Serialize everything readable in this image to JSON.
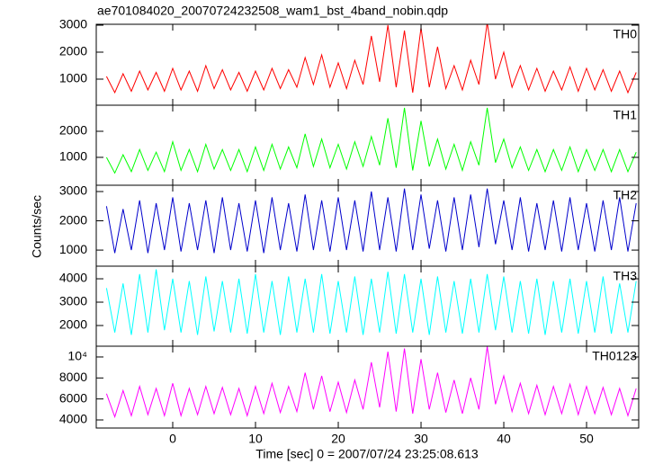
{
  "chart_data": {
    "type": "line",
    "title": "ae701084020_20070724232508_wam1_bst_4band_nobin.qdp",
    "xlabel": "Time [sec] 0 = 2007/07/24 23:25:08.613",
    "ylabel": "Counts/sec",
    "xlim": [
      -9.24,
      56.3
    ],
    "xticks": [
      0,
      10,
      20,
      30,
      40,
      50
    ],
    "x": [
      -8,
      -7,
      -6,
      -5,
      -4,
      -3,
      -2,
      -1,
      0,
      1,
      2,
      3,
      4,
      5,
      6,
      7,
      8,
      9,
      10,
      11,
      12,
      13,
      14,
      15,
      16,
      17,
      18,
      19,
      20,
      21,
      22,
      23,
      24,
      25,
      26,
      27,
      28,
      29,
      30,
      31,
      32,
      33,
      34,
      35,
      36,
      37,
      38,
      39,
      40,
      41,
      42,
      43,
      44,
      45,
      46,
      47,
      48,
      49,
      50,
      51,
      52,
      53,
      54,
      55,
      56
    ],
    "panels": [
      {
        "name": "TH0",
        "color": "#ff0000",
        "ylim": [
          33,
          3033
        ],
        "yticks": [
          1000,
          2000,
          3000
        ],
        "values": [
          1100,
          500,
          1200,
          550,
          1300,
          600,
          1250,
          550,
          1400,
          600,
          1300,
          550,
          1500,
          650,
          1350,
          600,
          1250,
          550,
          1300,
          600,
          1400,
          650,
          1350,
          700,
          1800,
          800,
          1900,
          700,
          1600,
          650,
          1700,
          800,
          2600,
          900,
          3000,
          700,
          2800,
          500,
          2900,
          700,
          2200,
          650,
          1500,
          600,
          1700,
          800,
          3100,
          1000,
          2000,
          700,
          1500,
          600,
          1400,
          550,
          1300,
          600,
          1450,
          550,
          1400,
          600,
          1350,
          550,
          1300,
          500,
          1250
        ]
      },
      {
        "name": "TH1",
        "color": "#00ff00",
        "ylim": [
          -70,
          3000
        ],
        "yticks": [
          1000,
          2000
        ],
        "values": [
          1000,
          400,
          1100,
          450,
          1300,
          500,
          1200,
          450,
          1600,
          500,
          1300,
          450,
          1500,
          550,
          1300,
          500,
          1300,
          450,
          1400,
          500,
          1500,
          550,
          1400,
          600,
          1900,
          650,
          1700,
          600,
          1500,
          550,
          1600,
          650,
          1800,
          700,
          2500,
          600,
          2900,
          500,
          2400,
          650,
          1700,
          550,
          1500,
          500,
          1600,
          700,
          2900,
          800,
          1700,
          600,
          1400,
          500,
          1300,
          450,
          1300,
          500,
          1400,
          450,
          1300,
          500,
          1300,
          450,
          1300,
          450,
          1200
        ]
      },
      {
        "name": "TH2",
        "color": "#0000cc",
        "ylim": [
          450,
          3215
        ],
        "yticks": [
          1000,
          2000,
          3000
        ],
        "values": [
          2500,
          900,
          2400,
          1000,
          2700,
          900,
          2600,
          1000,
          2800,
          950,
          2600,
          1000,
          2700,
          900,
          2800,
          1000,
          2600,
          950,
          2700,
          900,
          2800,
          1000,
          2600,
          950,
          2900,
          1000,
          2700,
          950,
          2800,
          1000,
          2700,
          950,
          3000,
          1000,
          2800,
          950,
          3100,
          1000,
          2900,
          1050,
          2700,
          950,
          2800,
          1000,
          2900,
          1100,
          3100,
          1200,
          2700,
          1000,
          2800,
          950,
          2600,
          1000,
          2700,
          950,
          2800,
          1000,
          2600,
          950,
          2700,
          1000,
          2800,
          950,
          2600
        ]
      },
      {
        "name": "TH3",
        "color": "#00ffff",
        "ylim": [
          1115,
          4540
        ],
        "yticks": [
          2000,
          3000,
          4000
        ],
        "values": [
          3600,
          1700,
          3800,
          1600,
          4200,
          1700,
          4400,
          1800,
          4000,
          1700,
          3900,
          1600,
          4100,
          1750,
          3900,
          1700,
          4000,
          1650,
          4200,
          1700,
          3900,
          1600,
          4100,
          1700,
          4000,
          1700,
          4200,
          1650,
          3900,
          1700,
          4100,
          1600,
          4000,
          1700,
          4300,
          1650,
          4200,
          1700,
          4000,
          1600,
          4100,
          1700,
          3900,
          1650,
          4000,
          1700,
          4200,
          1800,
          4100,
          1700,
          3900,
          1650,
          4000,
          1600,
          3900,
          1700,
          4000,
          1650,
          3900,
          1700,
          4100,
          1650,
          3800,
          1700,
          3900
        ]
      },
      {
        "name": "TH0123",
        "color": "#ff00ff",
        "ylim": [
          3230,
          11025
        ],
        "yticks": [
          4000,
          6000,
          8000,
          {
            "value": 10000,
            "label": "10⁴"
          }
        ],
        "values": [
          6500,
          4300,
          6800,
          4400,
          7200,
          4500,
          7000,
          4400,
          7500,
          4400,
          7000,
          4500,
          7200,
          4600,
          7100,
          4500,
          7000,
          4400,
          7200,
          4600,
          7500,
          4700,
          7200,
          4800,
          8500,
          5000,
          8200,
          4800,
          7600,
          4700,
          7800,
          5000,
          9500,
          5200,
          10500,
          4800,
          10800,
          4600,
          9800,
          5000,
          8500,
          4700,
          7800,
          4600,
          8000,
          5000,
          11000,
          5500,
          8200,
          4800,
          7500,
          4600,
          7300,
          4500,
          7200,
          4600,
          7400,
          4500,
          7200,
          4600,
          7100,
          4500,
          7000,
          4400,
          7000
        ]
      }
    ]
  }
}
